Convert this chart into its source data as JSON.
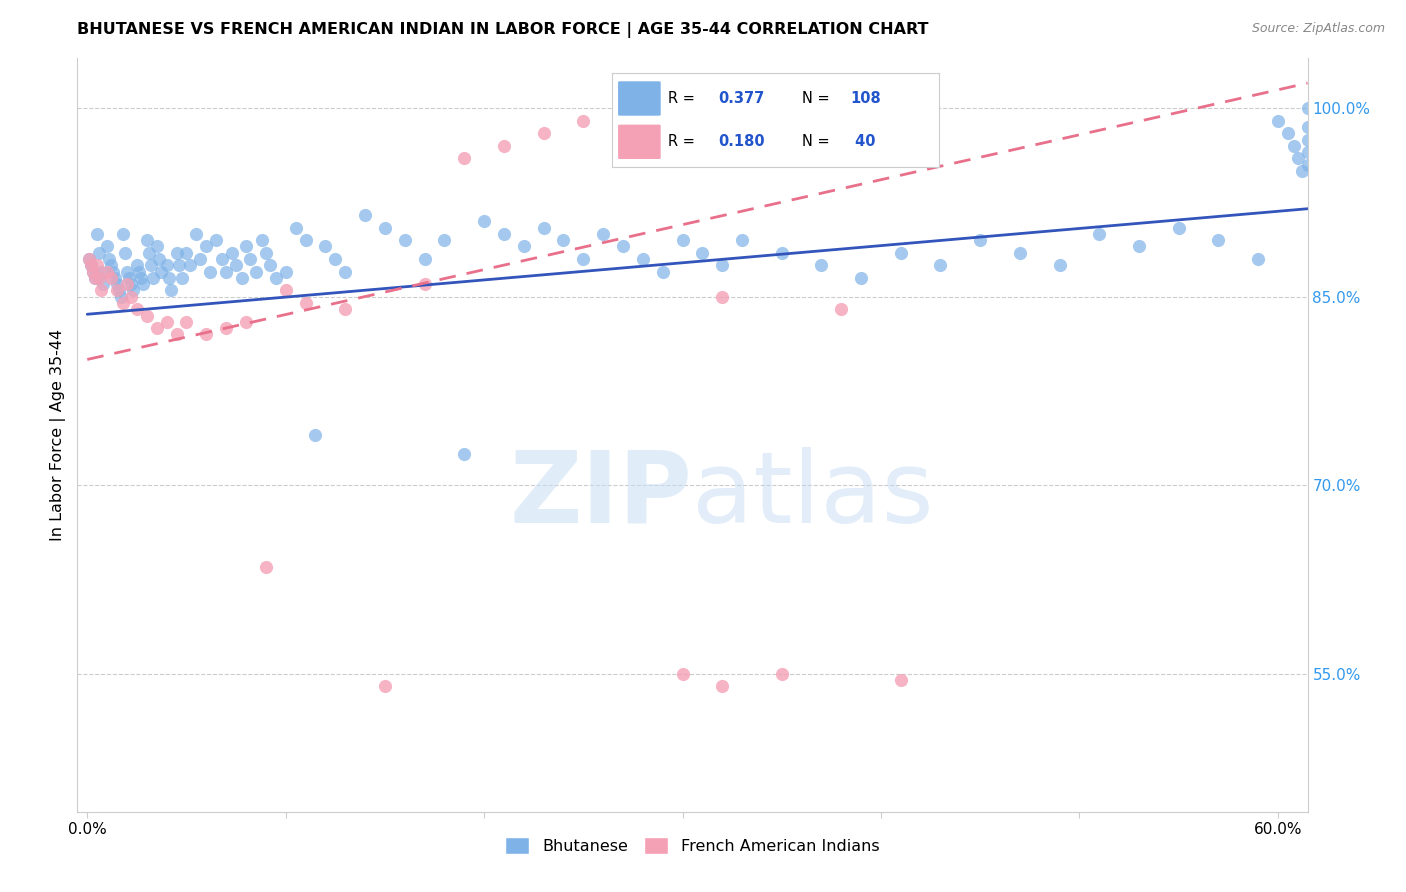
{
  "title": "BHUTANESE VS FRENCH AMERICAN INDIAN IN LABOR FORCE | AGE 35-44 CORRELATION CHART",
  "source": "Source: ZipAtlas.com",
  "ylabel": "In Labor Force | Age 35-44",
  "xlim": [
    -0.005,
    0.615
  ],
  "ylim": [
    0.44,
    1.04
  ],
  "right_yticks": [
    0.55,
    0.7,
    0.85,
    1.0
  ],
  "right_yticklabels": [
    "55.0%",
    "70.0%",
    "85.0%",
    "100.0%"
  ],
  "xtick_positions": [
    0.0,
    0.1,
    0.2,
    0.3,
    0.4,
    0.5,
    0.6
  ],
  "xtick_labels": [
    "0.0%",
    "",
    "",
    "",
    "",
    "",
    "60.0%"
  ],
  "blue_color": "#7fb3e8",
  "pink_color": "#f4a0b5",
  "line_blue": "#3355bb",
  "line_pink": "#e8708a",
  "watermark_text": "ZIPatlas",
  "watermark_color": "#ddeeff",
  "blue_scatter_x": [
    0.001,
    0.002,
    0.003,
    0.004,
    0.005,
    0.006,
    0.007,
    0.008,
    0.01,
    0.011,
    0.012,
    0.013,
    0.014,
    0.015,
    0.016,
    0.017,
    0.018,
    0.019,
    0.02,
    0.021,
    0.022,
    0.023,
    0.025,
    0.026,
    0.027,
    0.028,
    0.03,
    0.031,
    0.032,
    0.033,
    0.035,
    0.036,
    0.037,
    0.04,
    0.041,
    0.042,
    0.045,
    0.046,
    0.048,
    0.05,
    0.052,
    0.055,
    0.057,
    0.06,
    0.062,
    0.065,
    0.068,
    0.07,
    0.073,
    0.075,
    0.078,
    0.08,
    0.082,
    0.085,
    0.088,
    0.09,
    0.092,
    0.095,
    0.1,
    0.105,
    0.11,
    0.115,
    0.12,
    0.125,
    0.13,
    0.14,
    0.15,
    0.16,
    0.17,
    0.18,
    0.19,
    0.2,
    0.21,
    0.22,
    0.23,
    0.24,
    0.25,
    0.26,
    0.27,
    0.28,
    0.29,
    0.3,
    0.31,
    0.32,
    0.33,
    0.35,
    0.37,
    0.39,
    0.41,
    0.43,
    0.45,
    0.47,
    0.49,
    0.51,
    0.53,
    0.55,
    0.57,
    0.59,
    0.6,
    0.605,
    0.608,
    0.61,
    0.612,
    0.615,
    0.615,
    0.615,
    0.615,
    0.615
  ],
  "blue_scatter_y": [
    0.88,
    0.875,
    0.87,
    0.865,
    0.9,
    0.885,
    0.87,
    0.86,
    0.89,
    0.88,
    0.875,
    0.87,
    0.865,
    0.86,
    0.855,
    0.85,
    0.9,
    0.885,
    0.87,
    0.865,
    0.86,
    0.855,
    0.875,
    0.87,
    0.865,
    0.86,
    0.895,
    0.885,
    0.875,
    0.865,
    0.89,
    0.88,
    0.87,
    0.875,
    0.865,
    0.855,
    0.885,
    0.875,
    0.865,
    0.885,
    0.875,
    0.9,
    0.88,
    0.89,
    0.87,
    0.895,
    0.88,
    0.87,
    0.885,
    0.875,
    0.865,
    0.89,
    0.88,
    0.87,
    0.895,
    0.885,
    0.875,
    0.865,
    0.87,
    0.905,
    0.895,
    0.74,
    0.89,
    0.88,
    0.87,
    0.915,
    0.905,
    0.895,
    0.88,
    0.895,
    0.725,
    0.91,
    0.9,
    0.89,
    0.905,
    0.895,
    0.88,
    0.9,
    0.89,
    0.88,
    0.87,
    0.895,
    0.885,
    0.875,
    0.895,
    0.885,
    0.875,
    0.865,
    0.885,
    0.875,
    0.895,
    0.885,
    0.875,
    0.9,
    0.89,
    0.905,
    0.895,
    0.88,
    0.99,
    0.98,
    0.97,
    0.96,
    0.95,
    1.0,
    0.985,
    0.975,
    0.965,
    0.955
  ],
  "pink_scatter_x": [
    0.001,
    0.002,
    0.003,
    0.004,
    0.005,
    0.006,
    0.007,
    0.01,
    0.012,
    0.015,
    0.018,
    0.02,
    0.022,
    0.025,
    0.03,
    0.035,
    0.04,
    0.045,
    0.05,
    0.06,
    0.07,
    0.08,
    0.09,
    0.1,
    0.11,
    0.13,
    0.15,
    0.17,
    0.19,
    0.21,
    0.23,
    0.25,
    0.28,
    0.3,
    0.32,
    0.35,
    0.38,
    0.41,
    0.32,
    0.3
  ],
  "pink_scatter_y": [
    0.88,
    0.875,
    0.87,
    0.865,
    0.875,
    0.865,
    0.855,
    0.87,
    0.865,
    0.855,
    0.845,
    0.86,
    0.85,
    0.84,
    0.835,
    0.825,
    0.83,
    0.82,
    0.83,
    0.82,
    0.825,
    0.83,
    0.635,
    0.855,
    0.845,
    0.84,
    0.54,
    0.86,
    0.96,
    0.97,
    0.98,
    0.99,
    1.0,
    0.99,
    0.85,
    0.55,
    0.84,
    0.545,
    0.54,
    0.55
  ],
  "blue_line_x0": 0.0,
  "blue_line_x1": 0.615,
  "blue_line_y0": 0.836,
  "blue_line_y1": 0.92,
  "pink_line_x0": 0.0,
  "pink_line_x1": 0.615,
  "pink_line_y0": 0.8,
  "pink_line_y1": 1.02
}
